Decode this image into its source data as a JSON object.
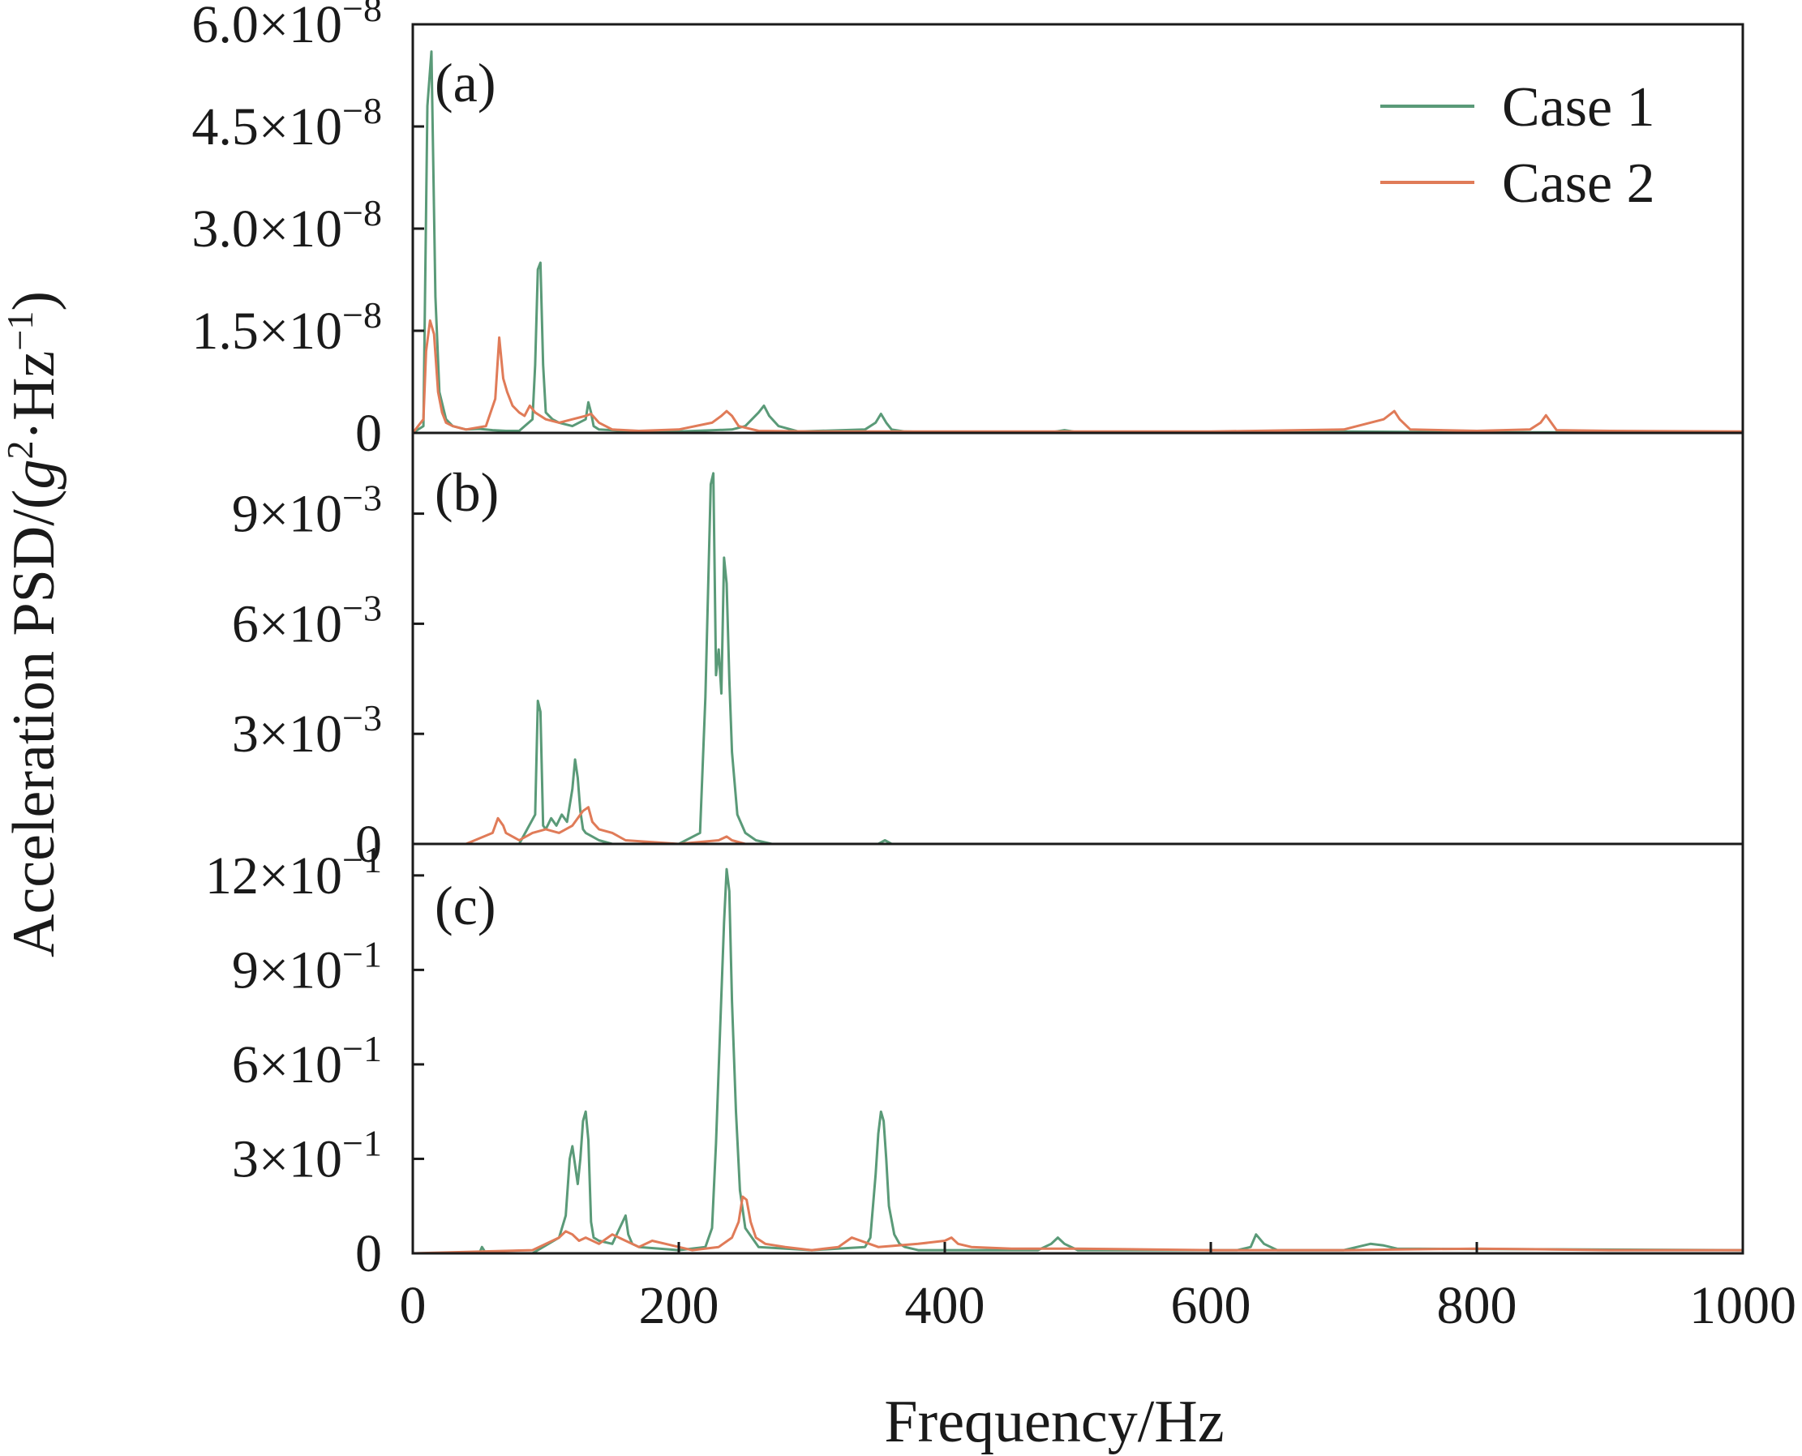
{
  "colors": {
    "case1": "#5a9a78",
    "case2": "#e07b58",
    "axis": "#1a1a1a"
  },
  "chart_data": [
    {
      "type": "line",
      "panel_label": "(a)",
      "xlim": [
        0,
        1000
      ],
      "ylim": [
        0,
        6e-08
      ],
      "yticks": [
        {
          "value": 0,
          "mantissa": "0",
          "exponent": ""
        },
        {
          "value": 1.5e-08,
          "mantissa": "1.5×10",
          "exponent": "−8"
        },
        {
          "value": 3e-08,
          "mantissa": "3.0×10",
          "exponent": "−8"
        },
        {
          "value": 4.5e-08,
          "mantissa": "4.5×10",
          "exponent": "−8"
        },
        {
          "value": 6e-08,
          "mantissa": "6.0×10",
          "exponent": "−8"
        }
      ],
      "legend": {
        "placement": "top-right",
        "entries": [
          "Case 1",
          "Case 2"
        ]
      },
      "series": [
        {
          "name": "Case 1",
          "x": [
            0,
            8,
            11,
            14,
            17,
            20,
            25,
            30,
            40,
            50,
            60,
            70,
            80,
            90,
            92,
            94,
            96,
            98,
            100,
            105,
            110,
            120,
            130,
            132,
            134,
            136,
            140,
            160,
            200,
            240,
            250,
            255,
            260,
            264,
            268,
            275,
            290,
            340,
            348,
            352,
            356,
            360,
            370,
            400,
            480,
            490,
            500,
            600,
            700,
            800,
            850,
            900,
            1000
          ],
          "y": [
            0,
            1e-09,
            4.8e-08,
            5.6e-08,
            2e-08,
            6e-09,
            2e-09,
            1e-09,
            5e-10,
            6e-10,
            4e-10,
            3e-10,
            3e-10,
            2e-09,
            1e-08,
            2.4e-08,
            2.5e-08,
            1e-08,
            3e-09,
            2e-09,
            1.5e-09,
            1e-09,
            2e-09,
            4.5e-09,
            3e-09,
            1e-09,
            5e-10,
            3e-10,
            2e-10,
            5e-10,
            1e-09,
            2e-09,
            3e-09,
            4e-09,
            2.5e-09,
            1e-09,
            2e-10,
            5e-10,
            1.5e-09,
            2.8e-09,
            1.5e-09,
            5e-10,
            2e-10,
            1e-10,
            1e-10,
            4e-10,
            1e-10,
            1e-10,
            2e-10,
            1e-10,
            1e-10,
            1e-10,
            1e-10
          ]
        },
        {
          "name": "Case 2",
          "x": [
            0,
            8,
            10,
            13,
            16,
            19,
            22,
            25,
            30,
            40,
            55,
            62,
            65,
            68,
            71,
            75,
            80,
            84,
            88,
            92,
            100,
            110,
            120,
            130,
            134,
            140,
            150,
            170,
            200,
            225,
            232,
            236,
            240,
            245,
            260,
            300,
            400,
            500,
            600,
            700,
            730,
            738,
            742,
            750,
            800,
            840,
            848,
            852,
            860,
            900,
            1000
          ],
          "y": [
            0,
            2e-09,
            1.2e-08,
            1.65e-08,
            1.45e-08,
            6e-09,
            3e-09,
            1.5e-09,
            1e-09,
            5e-10,
            1e-09,
            5e-09,
            1.4e-08,
            8e-09,
            6e-09,
            4e-09,
            3e-09,
            2.5e-09,
            4e-09,
            3e-09,
            2e-09,
            1.5e-09,
            2e-09,
            2.5e-09,
            2.8e-09,
            1.5e-09,
            5e-10,
            3e-10,
            5e-10,
            1.5e-09,
            2.5e-09,
            3.2e-09,
            2.5e-09,
            1e-09,
            3e-10,
            2e-10,
            2e-10,
            2e-10,
            2e-10,
            5e-10,
            2e-09,
            3.2e-09,
            2e-09,
            5e-10,
            3e-10,
            5e-10,
            1.5e-09,
            2.6e-09,
            4e-10,
            3e-10,
            2e-10
          ]
        }
      ]
    },
    {
      "type": "line",
      "panel_label": "(b)",
      "xlim": [
        0,
        1000
      ],
      "ylim": [
        0,
        0.0112
      ],
      "yticks": [
        {
          "value": 0,
          "mantissa": "0",
          "exponent": ""
        },
        {
          "value": 0.003,
          "mantissa": "3×10",
          "exponent": "−3"
        },
        {
          "value": 0.006,
          "mantissa": "6×10",
          "exponent": "−3"
        },
        {
          "value": 0.009,
          "mantissa": "9×10",
          "exponent": "−3"
        }
      ],
      "series": [
        {
          "name": "Case 1",
          "x": [
            0,
            80,
            92,
            94,
            96,
            98,
            100,
            104,
            108,
            112,
            116,
            120,
            122,
            124,
            126,
            128,
            130,
            135,
            140,
            150,
            200,
            216,
            220,
            224,
            226,
            228,
            230,
            232,
            234,
            236,
            238,
            240,
            244,
            250,
            258,
            270,
            300,
            350,
            355,
            360,
            400,
            1000
          ],
          "y": [
            0,
            0,
            0.0008,
            0.0039,
            0.0036,
            0.0005,
            0.0004,
            0.0007,
            0.0005,
            0.0008,
            0.0006,
            0.0015,
            0.0023,
            0.0018,
            0.0009,
            0.0004,
            0.0003,
            0.0002,
            0.0001,
            0,
            0,
            0.0003,
            0.004,
            0.0098,
            0.0101,
            0.0046,
            0.0053,
            0.0041,
            0.0078,
            0.0071,
            0.0045,
            0.0025,
            0.0008,
            0.0003,
            0.0001,
            0,
            0,
            0,
            0.0001,
            0,
            0,
            0
          ]
        },
        {
          "name": "Case 2",
          "x": [
            0,
            40,
            60,
            64,
            66,
            68,
            70,
            75,
            80,
            90,
            100,
            110,
            120,
            128,
            132,
            135,
            140,
            150,
            160,
            180,
            200,
            230,
            236,
            240,
            250,
            300,
            1000
          ],
          "y": [
            0,
            0,
            0.0003,
            0.0007,
            0.0006,
            0.0005,
            0.0003,
            0.0002,
            0.0001,
            0.0003,
            0.0004,
            0.0003,
            0.0005,
            0.0009,
            0.001,
            0.0006,
            0.0004,
            0.0003,
            0.0001,
            5e-05,
            0,
            0.0001,
            0.0002,
            0.0001,
            0,
            0,
            0
          ]
        }
      ]
    },
    {
      "type": "line",
      "panel_label": "(c)",
      "xlim": [
        0,
        1000
      ],
      "ylim": [
        0,
        1.3
      ],
      "yticks": [
        {
          "value": 0,
          "mantissa": "0",
          "exponent": ""
        },
        {
          "value": 0.3,
          "mantissa": "3×10",
          "exponent": "−1"
        },
        {
          "value": 0.6,
          "mantissa": "6×10",
          "exponent": "−1"
        },
        {
          "value": 0.9,
          "mantissa": "9×10",
          "exponent": "−1"
        },
        {
          "value": 1.2,
          "mantissa": "12×10",
          "exponent": "−1"
        }
      ],
      "xticks": [
        0,
        200,
        400,
        600,
        800,
        1000
      ],
      "xlabel": "Frequency/Hz",
      "series": [
        {
          "name": "Case 1",
          "x": [
            0,
            50,
            52,
            55,
            90,
            110,
            115,
            118,
            120,
            122,
            124,
            126,
            128,
            130,
            132,
            134,
            136,
            140,
            150,
            160,
            162,
            165,
            170,
            200,
            220,
            225,
            228,
            231,
            234,
            236,
            238,
            240,
            243,
            246,
            250,
            260,
            300,
            340,
            344,
            348,
            350,
            352,
            354,
            356,
            358,
            362,
            366,
            370,
            380,
            400,
            470,
            480,
            485,
            490,
            500,
            600,
            620,
            630,
            634,
            640,
            650,
            700,
            710,
            720,
            730,
            740,
            1000
          ],
          "y": [
            0,
            0,
            0.02,
            0,
            0,
            0.05,
            0.12,
            0.3,
            0.34,
            0.28,
            0.22,
            0.3,
            0.42,
            0.45,
            0.36,
            0.1,
            0.05,
            0.04,
            0.03,
            0.12,
            0.06,
            0.03,
            0.02,
            0.01,
            0.02,
            0.08,
            0.35,
            0.7,
            1.05,
            1.22,
            1.15,
            0.8,
            0.45,
            0.2,
            0.08,
            0.02,
            0.01,
            0.02,
            0.05,
            0.25,
            0.38,
            0.45,
            0.42,
            0.3,
            0.15,
            0.06,
            0.03,
            0.02,
            0.01,
            0.01,
            0.01,
            0.03,
            0.05,
            0.03,
            0.01,
            0.01,
            0.01,
            0.02,
            0.06,
            0.03,
            0.01,
            0.01,
            0.02,
            0.03,
            0.025,
            0.015,
            0.01
          ]
        },
        {
          "name": "Case 2",
          "x": [
            0,
            90,
            100,
            110,
            115,
            120,
            125,
            130,
            140,
            150,
            160,
            170,
            180,
            190,
            200,
            210,
            230,
            240,
            245,
            248,
            251,
            254,
            258,
            265,
            280,
            300,
            320,
            330,
            350,
            380,
            400,
            405,
            410,
            420,
            450,
            500,
            600,
            700,
            800,
            900,
            1000
          ],
          "y": [
            0,
            0.01,
            0.03,
            0.05,
            0.07,
            0.06,
            0.04,
            0.05,
            0.03,
            0.06,
            0.04,
            0.02,
            0.04,
            0.03,
            0.02,
            0.01,
            0.02,
            0.05,
            0.1,
            0.18,
            0.17,
            0.1,
            0.05,
            0.03,
            0.02,
            0.01,
            0.02,
            0.05,
            0.02,
            0.03,
            0.04,
            0.05,
            0.03,
            0.02,
            0.015,
            0.015,
            0.01,
            0.01,
            0.015,
            0.01,
            0.01
          ]
        }
      ]
    }
  ],
  "ylabel": {
    "prefix": "Acceleration PSD/(",
    "g": "g",
    "g_exp": "2",
    "dot_hz": "·Hz",
    "hz_exp": "−1",
    "suffix": ")"
  }
}
